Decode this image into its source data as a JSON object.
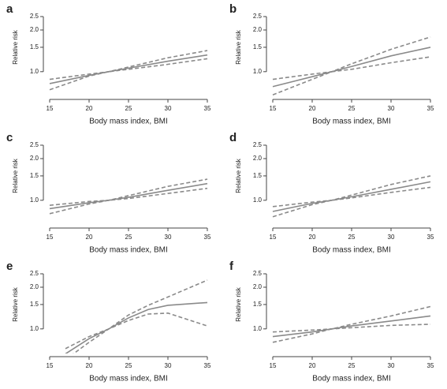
{
  "chart_data": [
    {
      "type": "line",
      "panel_label": "a",
      "xlabel": "Body mass index, BMI",
      "ylabel": "Relative risk",
      "log_y": true,
      "x": [
        15,
        20,
        22.5,
        25,
        30,
        35
      ],
      "xlim": [
        15,
        35
      ],
      "xticks": [
        15,
        20,
        25,
        30,
        35
      ],
      "ylim": [
        0.7,
        2.6
      ],
      "yticks": [
        {
          "value": 1,
          "label": "1.0"
        },
        1.5,
        {
          "value": 2,
          "label": "2.0"
        },
        2.5
      ],
      "series": [
        {
          "color": "#8a8a8a",
          "style": "solid",
          "values": [
            0.82,
            0.94,
            1.0,
            1.06,
            1.19,
            1.32
          ]
        },
        {
          "color": "#8a8a8a",
          "style": "dashed",
          "values": [
            0.74,
            0.93,
            1.0,
            1.04,
            1.13,
            1.24
          ]
        },
        {
          "color": "#8a8a8a",
          "style": "dashed",
          "values": [
            0.88,
            0.96,
            1.0,
            1.08,
            1.26,
            1.42
          ]
        }
      ]
    },
    {
      "type": "line",
      "panel_label": "b",
      "xlabel": "Body mass index, BMI",
      "ylabel": "Relative risk",
      "log_y": true,
      "x": [
        15,
        20,
        22.5,
        25,
        30,
        35
      ],
      "xlim": [
        15,
        35
      ],
      "xticks": [
        15,
        20,
        25,
        30,
        35
      ],
      "ylim": [
        0.7,
        2.6
      ],
      "yticks": [
        {
          "value": 1,
          "label": "1.0"
        },
        1.5,
        {
          "value": 2,
          "label": "2.0"
        },
        2.5
      ],
      "series": [
        {
          "color": "#8a8a8a",
          "style": "solid",
          "values": [
            0.78,
            0.92,
            1.0,
            1.09,
            1.3,
            1.5
          ]
        },
        {
          "color": "#8a8a8a",
          "style": "dashed",
          "values": [
            0.68,
            0.88,
            1.0,
            1.04,
            1.16,
            1.28
          ]
        },
        {
          "color": "#8a8a8a",
          "style": "dashed",
          "values": [
            0.88,
            0.96,
            1.0,
            1.14,
            1.45,
            1.78
          ]
        }
      ]
    },
    {
      "type": "line",
      "panel_label": "c",
      "xlabel": "Body mass index, BMI",
      "ylabel": "Relative risk",
      "log_y": true,
      "x": [
        15,
        20,
        22.5,
        25,
        30,
        35
      ],
      "xlim": [
        15,
        35
      ],
      "xticks": [
        15,
        20,
        25,
        30,
        35
      ],
      "ylim": [
        0.7,
        2.6
      ],
      "yticks": [
        {
          "value": 1,
          "label": "1.0"
        },
        1.5,
        {
          "value": 2,
          "label": "2.0"
        },
        2.5
      ],
      "series": [
        {
          "color": "#8a8a8a",
          "style": "solid",
          "values": [
            0.87,
            0.96,
            1.0,
            1.05,
            1.18,
            1.32
          ]
        },
        {
          "color": "#8a8a8a",
          "style": "dashed",
          "values": [
            0.8,
            0.94,
            1.0,
            1.03,
            1.12,
            1.22
          ]
        },
        {
          "color": "#8a8a8a",
          "style": "dashed",
          "values": [
            0.92,
            0.98,
            1.0,
            1.08,
            1.26,
            1.42
          ]
        }
      ]
    },
    {
      "type": "line",
      "panel_label": "d",
      "xlabel": "Body mass index, BMI",
      "ylabel": "Relative risk",
      "log_y": true,
      "x": [
        15,
        20,
        22.5,
        25,
        30,
        35
      ],
      "xlim": [
        15,
        35
      ],
      "xticks": [
        15,
        20,
        25,
        30,
        35
      ],
      "ylim": [
        0.7,
        2.6
      ],
      "yticks": [
        {
          "value": 1,
          "label": "1.0"
        },
        1.5,
        {
          "value": 2,
          "label": "2.0"
        },
        2.5
      ],
      "series": [
        {
          "color": "#8a8a8a",
          "style": "solid",
          "values": [
            0.83,
            0.95,
            1.0,
            1.06,
            1.2,
            1.36
          ]
        },
        {
          "color": "#8a8a8a",
          "style": "dashed",
          "values": [
            0.76,
            0.93,
            1.0,
            1.04,
            1.14,
            1.24
          ]
        },
        {
          "color": "#8a8a8a",
          "style": "dashed",
          "values": [
            0.9,
            0.97,
            1.0,
            1.09,
            1.3,
            1.5
          ]
        }
      ]
    },
    {
      "type": "line",
      "panel_label": "e",
      "xlabel": "Body mass index, BMI",
      "ylabel": "Relative risk",
      "log_y": true,
      "x": [
        17,
        20,
        22.5,
        25,
        27.5,
        30,
        35
      ],
      "xlim": [
        15,
        35
      ],
      "xticks": [
        15,
        20,
        25,
        30,
        35
      ],
      "ylim": [
        0.7,
        2.6
      ],
      "yticks": [
        {
          "value": 1,
          "label": "1.0"
        },
        1.5,
        {
          "value": 2,
          "label": "2.0"
        },
        2.5
      ],
      "series": [
        {
          "color": "#8a8a8a",
          "style": "solid",
          "values": [
            0.66,
            0.85,
            1.0,
            1.2,
            1.38,
            1.48,
            1.55
          ]
        },
        {
          "color": "#8a8a8a",
          "style": "dashed",
          "values": [
            0.6,
            0.8,
            1.0,
            1.15,
            1.28,
            1.3,
            1.05
          ]
        },
        {
          "color": "#8a8a8a",
          "style": "dashed",
          "values": [
            0.72,
            0.88,
            1.0,
            1.26,
            1.48,
            1.7,
            2.25
          ]
        }
      ]
    },
    {
      "type": "line",
      "panel_label": "f",
      "xlabel": "Body mass index, BMI",
      "ylabel": "Relative risk",
      "log_y": true,
      "x": [
        15,
        20,
        22.5,
        25,
        30,
        35
      ],
      "xlim": [
        15,
        35
      ],
      "xticks": [
        15,
        20,
        25,
        30,
        35
      ],
      "ylim": [
        0.7,
        2.6
      ],
      "yticks": [
        {
          "value": 1,
          "label": "1.0"
        },
        1.5,
        {
          "value": 2,
          "label": "2.0"
        },
        2.5
      ],
      "series": [
        {
          "color": "#8a8a8a",
          "style": "solid",
          "values": [
            0.88,
            0.95,
            1.0,
            1.05,
            1.14,
            1.24
          ]
        },
        {
          "color": "#8a8a8a",
          "style": "dashed",
          "values": [
            0.95,
            0.98,
            1.0,
            1.02,
            1.06,
            1.08
          ]
        },
        {
          "color": "#8a8a8a",
          "style": "dashed",
          "values": [
            0.8,
            0.92,
            1.0,
            1.08,
            1.24,
            1.45
          ]
        }
      ]
    }
  ]
}
